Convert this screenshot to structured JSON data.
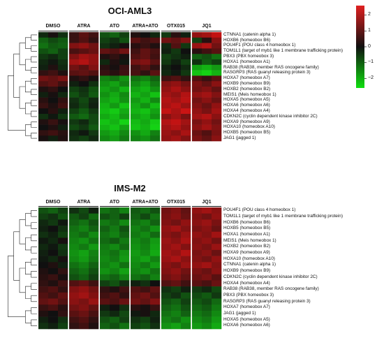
{
  "colorbar": {
    "ticks": [
      "2",
      "1",
      "0",
      "−1",
      "−2"
    ],
    "ticks_values": [
      2,
      1,
      0,
      -1,
      -2
    ],
    "range": [
      -2.6,
      2.6
    ],
    "colors": {
      "high": "#e02020",
      "mid": "#101010",
      "low": "#10e010"
    }
  },
  "chart_data": [
    {
      "type": "heatmap",
      "title": "OCI-AML3",
      "groups": [
        "DMSO",
        "ATRA",
        "ATO",
        "ATRA+ATO",
        "OTX015",
        "JQ1"
      ],
      "replicates_per_group": 3,
      "rows": [
        {
          "label": "CTNNA1 (catenin alpha 1)",
          "values": [
            -0.3,
            0.1,
            -0.4,
            0.5,
            0.9,
            0.6,
            -0.8,
            -1.0,
            -0.6,
            0.2,
            0.0,
            -0.3,
            -0.5,
            0.3,
            -0.2,
            1.6,
            1.8,
            2.2
          ]
        },
        {
          "label": "HOXB6 (homeobox B6)",
          "values": [
            -1.0,
            -0.7,
            -0.9,
            0.5,
            0.8,
            0.4,
            -0.6,
            -0.4,
            -0.8,
            0.9,
            0.6,
            0.8,
            1.2,
            1.0,
            1.4,
            -0.6,
            0.3,
            1.5
          ]
        },
        {
          "label": "POU4F1 (POU class 4 homeobox 1)",
          "values": [
            -1.2,
            -0.9,
            -1.0,
            1.4,
            1.6,
            1.2,
            -0.4,
            -0.2,
            0.1,
            0.3,
            0.5,
            0.2,
            -0.3,
            0.8,
            -0.5,
            1.7,
            2.0,
            1.2
          ]
        },
        {
          "label": "TOM1L1 (target of myb1 like 1 membrane trafficking protein)",
          "values": [
            -0.8,
            -1.0,
            -0.6,
            0.7,
            0.9,
            1.1,
            1.0,
            0.8,
            1.2,
            0.6,
            1.0,
            0.7,
            -0.2,
            -0.5,
            0.0,
            0.3,
            0.6,
            0.9
          ]
        },
        {
          "label": "PBX3 (PBX homeobox 3)",
          "values": [
            -0.5,
            -0.3,
            -0.6,
            1.4,
            1.8,
            1.6,
            0.2,
            0.4,
            0.1,
            0.8,
            1.0,
            0.6,
            -0.6,
            -0.4,
            -0.2,
            -1.0,
            -0.8,
            -1.2
          ]
        },
        {
          "label": "HOXA1 (homeobox A1)",
          "values": [
            -0.3,
            -0.1,
            -0.4,
            1.8,
            2.0,
            1.6,
            -0.3,
            0.2,
            -0.1,
            1.2,
            1.4,
            0.9,
            -0.5,
            -0.2,
            -0.6,
            -0.4,
            -0.9,
            -0.6
          ]
        },
        {
          "label": "RAB38 (RAB38, member RAS oncogene family)",
          "values": [
            -0.2,
            0.2,
            -0.3,
            1.2,
            0.9,
            1.4,
            0.3,
            0.1,
            0.5,
            0.6,
            0.9,
            0.4,
            -0.2,
            0.0,
            -0.3,
            -1.8,
            -2.0,
            -1.7
          ]
        },
        {
          "label": "RASGRP3 (RAS guanyl releasing protein 3)",
          "values": [
            0.4,
            0.6,
            0.2,
            0.9,
            1.0,
            0.8,
            0.5,
            0.3,
            0.6,
            0.7,
            0.4,
            0.9,
            -0.3,
            -0.1,
            -0.5,
            -2.2,
            -2.4,
            -2.0
          ]
        },
        {
          "label": "HOXA7 (homeobox A7)",
          "values": [
            1.2,
            1.0,
            1.3,
            0.2,
            0.4,
            0.1,
            -1.4,
            -1.2,
            -1.6,
            -1.2,
            -1.4,
            -1.0,
            0.6,
            0.8,
            0.4,
            0.8,
            0.5,
            0.9
          ]
        },
        {
          "label": "HOXB9 (homeobox B9)",
          "values": [
            0.8,
            1.0,
            0.6,
            -0.2,
            0.0,
            -0.4,
            -1.6,
            -1.8,
            -1.4,
            -1.5,
            -1.8,
            -1.3,
            1.4,
            1.6,
            1.2,
            1.3,
            1.0,
            1.5
          ]
        },
        {
          "label": "HOXB2 (homeobox B2)",
          "values": [
            0.2,
            0.4,
            0.0,
            -0.6,
            -0.4,
            -0.8,
            -1.8,
            -1.6,
            -2.0,
            -1.8,
            -2.0,
            -1.6,
            1.6,
            1.9,
            1.5,
            1.2,
            1.4,
            1.0
          ]
        },
        {
          "label": "MEIS1 (Meis homeobox 1)",
          "values": [
            -0.2,
            0.1,
            -0.3,
            -0.8,
            -0.5,
            -0.9,
            -1.6,
            -1.9,
            -1.5,
            -2.0,
            -1.8,
            -2.2,
            1.8,
            1.6,
            2.0,
            1.6,
            1.8,
            1.4
          ]
        },
        {
          "label": "HOXA5 (homeobox A5)",
          "values": [
            0.3,
            0.0,
            0.4,
            -0.4,
            -0.7,
            -0.3,
            -1.8,
            -2.0,
            -1.6,
            -1.7,
            -2.0,
            -1.5,
            2.0,
            1.8,
            2.1,
            1.2,
            1.5,
            1.1
          ]
        },
        {
          "label": "HOXA6 (homeobox A6)",
          "values": [
            0.5,
            0.2,
            0.6,
            -0.3,
            -0.6,
            -0.2,
            -2.0,
            -1.7,
            -2.2,
            -1.9,
            -1.6,
            -2.1,
            1.9,
            2.1,
            1.7,
            1.4,
            1.1,
            1.6
          ]
        },
        {
          "label": "HOXA4 (homeobox A4)",
          "values": [
            0.0,
            0.3,
            -0.2,
            -0.6,
            -0.9,
            -0.5,
            -2.1,
            -2.3,
            -1.9,
            -2.0,
            -2.2,
            -1.8,
            2.2,
            1.9,
            2.3,
            1.6,
            1.3,
            1.8
          ]
        },
        {
          "label": "CDKN2C (cyclin dependent kinase inhibitor 2C)",
          "values": [
            -0.4,
            -0.1,
            -0.5,
            -0.9,
            -1.1,
            -0.7,
            -1.9,
            -2.1,
            -1.7,
            -1.8,
            -2.0,
            -1.6,
            1.5,
            1.8,
            1.3,
            1.8,
            2.0,
            1.5
          ]
        },
        {
          "label": "HOXA9 (homeobox A9)",
          "values": [
            0.2,
            0.5,
            0.1,
            -0.5,
            -0.3,
            -0.7,
            -2.2,
            -2.0,
            -2.4,
            -2.1,
            -1.9,
            -2.3,
            2.0,
            2.2,
            1.8,
            1.3,
            1.6,
            1.2
          ]
        },
        {
          "label": "HOXA10 (homeobox A10)",
          "values": [
            0.0,
            0.2,
            -0.2,
            -0.7,
            -0.5,
            -0.9,
            -2.0,
            -2.2,
            -1.8,
            -2.2,
            -2.0,
            -2.4,
            1.8,
            2.0,
            1.6,
            1.5,
            1.8,
            1.4
          ]
        },
        {
          "label": "HOXB5 (homeobox B5)",
          "values": [
            0.4,
            0.6,
            0.3,
            -0.3,
            -0.1,
            -0.5,
            -1.7,
            -1.9,
            -1.5,
            -1.6,
            -1.9,
            -1.4,
            1.7,
            1.5,
            1.9,
            1.1,
            0.8,
            1.3
          ]
        },
        {
          "label": "JAG1 (jagged 1)",
          "values": [
            0.1,
            -0.2,
            0.2,
            -0.4,
            -0.6,
            -0.3,
            -1.5,
            -1.7,
            -1.3,
            -1.4,
            -1.6,
            -1.2,
            1.6,
            1.8,
            1.4,
            1.3,
            1.0,
            1.5
          ]
        }
      ]
    },
    {
      "type": "heatmap",
      "title": "IMS-M2",
      "groups": [
        "DMSO",
        "ATRA",
        "ATO",
        "ATRA+ATO",
        "OTX015",
        "JQ1"
      ],
      "replicates_per_group": 3,
      "rows": [
        {
          "label": "POU4F1 (POU class 4 homeobox 1)",
          "values": [
            -0.8,
            -1.0,
            -0.6,
            -0.4,
            -0.7,
            -0.2,
            -1.2,
            -1.0,
            -1.4,
            -0.9,
            -1.1,
            -0.8,
            1.2,
            1.4,
            1.0,
            1.6,
            1.8,
            1.5
          ]
        },
        {
          "label": "TOM1L1 (target of myb1 like 1 membrane trafficking protein)",
          "values": [
            -0.6,
            -0.4,
            -0.8,
            -0.9,
            -0.6,
            -1.1,
            -0.8,
            -1.0,
            -0.6,
            -1.0,
            -0.7,
            -1.2,
            1.3,
            1.5,
            1.1,
            1.4,
            1.2,
            1.6
          ]
        },
        {
          "label": "HOXB6 (homeobox B6)",
          "values": [
            -0.3,
            -0.5,
            -0.1,
            -1.0,
            -1.2,
            -0.8,
            -1.3,
            -1.1,
            -1.5,
            -1.2,
            -1.4,
            -1.0,
            1.4,
            1.2,
            1.6,
            1.5,
            1.7,
            1.3
          ]
        },
        {
          "label": "HOXB5 (homeobox B5)",
          "values": [
            -0.2,
            0.0,
            -0.4,
            -1.2,
            -1.4,
            -1.0,
            -1.0,
            -1.3,
            -0.8,
            -1.4,
            -1.2,
            -1.6,
            1.6,
            1.8,
            1.4,
            1.3,
            1.5,
            1.1
          ]
        },
        {
          "label": "HOXA1 (homeobox A1)",
          "values": [
            -0.4,
            -0.2,
            -0.6,
            -1.3,
            -1.1,
            -1.5,
            -1.2,
            -1.4,
            -1.0,
            -1.3,
            -1.5,
            -1.1,
            1.5,
            1.3,
            1.7,
            1.6,
            1.4,
            1.8
          ]
        },
        {
          "label": "MEIS1 (Meis homeobox 1)",
          "values": [
            -0.1,
            -0.3,
            0.1,
            -1.4,
            -1.6,
            -1.2,
            -1.1,
            -0.9,
            -1.3,
            -1.5,
            -1.3,
            -1.7,
            1.7,
            1.5,
            1.9,
            1.4,
            1.6,
            1.2
          ]
        },
        {
          "label": "HOXB2 (homeobox B2)",
          "values": [
            -0.3,
            -0.1,
            -0.5,
            -1.5,
            -1.3,
            -1.7,
            -1.3,
            -1.5,
            -1.1,
            -1.6,
            -1.4,
            -1.8,
            1.6,
            1.8,
            1.4,
            1.5,
            1.3,
            1.7
          ]
        },
        {
          "label": "HOXA9 (homeobox A9)",
          "values": [
            -0.2,
            0.0,
            -0.4,
            -1.6,
            -1.8,
            -1.4,
            -1.4,
            -1.2,
            -1.6,
            -1.7,
            -1.5,
            -1.9,
            1.8,
            1.6,
            2.0,
            1.3,
            1.5,
            1.1
          ]
        },
        {
          "label": "HOXA10 (homeobox A10)",
          "values": [
            -0.1,
            -0.3,
            0.1,
            -1.5,
            -1.7,
            -1.3,
            -1.5,
            -1.3,
            -1.7,
            -1.6,
            -1.8,
            -1.4,
            1.7,
            1.9,
            1.5,
            1.4,
            1.2,
            1.6
          ]
        },
        {
          "label": "CTNNA1 (catenin alpha 1)",
          "values": [
            0.0,
            0.2,
            -0.2,
            -1.2,
            -1.4,
            -1.0,
            -1.4,
            -1.6,
            -1.2,
            -1.5,
            -1.3,
            -1.7,
            1.5,
            1.3,
            1.7,
            1.6,
            1.8,
            1.4
          ]
        },
        {
          "label": "HOXB9 (homeobox B9)",
          "values": [
            0.2,
            0.0,
            0.4,
            -1.0,
            -1.2,
            -0.8,
            -1.6,
            -1.4,
            -1.8,
            -1.4,
            -1.6,
            -1.2,
            1.4,
            1.6,
            1.2,
            1.3,
            1.1,
            1.5
          ]
        },
        {
          "label": "CDKN2C (cyclin dependent kinase inhibitor 2C)",
          "values": [
            0.3,
            0.5,
            0.1,
            -0.8,
            -1.0,
            -0.6,
            -1.2,
            -1.0,
            -1.4,
            -1.2,
            -1.0,
            -1.4,
            1.2,
            1.4,
            1.0,
            1.1,
            1.3,
            0.9
          ]
        },
        {
          "label": "HOXA4 (homeobox A4)",
          "values": [
            0.4,
            0.2,
            0.6,
            0.8,
            1.0,
            0.6,
            -0.6,
            -0.8,
            -0.4,
            -0.2,
            -0.4,
            0.0,
            0.8,
            1.0,
            0.6,
            0.9,
            0.7,
            1.1
          ]
        },
        {
          "label": "RAB38 (RAB38, member RAS oncogene family)",
          "values": [
            0.6,
            0.8,
            0.4,
            1.4,
            1.6,
            1.2,
            0.4,
            0.2,
            0.6,
            0.8,
            0.6,
            1.0,
            -0.4,
            -0.6,
            -0.2,
            -0.5,
            -0.3,
            -0.7
          ]
        },
        {
          "label": "PBX3 (PBX homeobox 3)",
          "values": [
            0.8,
            0.6,
            1.0,
            1.6,
            1.8,
            1.4,
            0.6,
            0.8,
            0.4,
            1.0,
            1.2,
            0.8,
            -0.6,
            -0.4,
            -0.8,
            -0.7,
            -0.9,
            -0.5
          ]
        },
        {
          "label": "RASGRP3 (RAS guanyl releasing protein 3)",
          "values": [
            1.0,
            1.2,
            0.8,
            1.5,
            1.3,
            1.7,
            0.9,
            0.7,
            1.1,
            1.2,
            1.0,
            1.4,
            -0.8,
            -1.0,
            -0.6,
            -0.9,
            -0.7,
            -1.1
          ]
        },
        {
          "label": "HOXA7 (homeobox A7)",
          "values": [
            0.5,
            0.7,
            0.3,
            1.2,
            1.4,
            1.0,
            -0.2,
            0.0,
            -0.4,
            0.3,
            0.1,
            0.5,
            -1.0,
            -1.2,
            -0.8,
            -1.1,
            -0.9,
            -1.3
          ]
        },
        {
          "label": "JAG1 (jagged 1)",
          "values": [
            0.2,
            0.0,
            0.4,
            0.9,
            1.1,
            0.7,
            -0.5,
            -0.3,
            -0.7,
            -0.1,
            0.1,
            -0.3,
            -1.2,
            -1.4,
            -1.0,
            -1.3,
            -1.1,
            -1.5
          ]
        },
        {
          "label": "HOXA5 (homeobox A5)",
          "values": [
            -0.2,
            0.0,
            -0.4,
            0.6,
            0.8,
            0.4,
            -0.8,
            -1.0,
            -0.6,
            -0.4,
            -0.6,
            -0.2,
            -1.4,
            -1.2,
            -1.6,
            -1.5,
            -1.3,
            -1.7
          ]
        },
        {
          "label": "HOXA6 (homeobox A6)",
          "values": [
            -0.4,
            -0.2,
            -0.6,
            0.4,
            0.6,
            0.2,
            -1.0,
            -0.8,
            -1.2,
            -0.6,
            -0.8,
            -0.4,
            -1.6,
            -1.8,
            -1.4,
            -1.7,
            -1.5,
            -1.9
          ]
        }
      ]
    }
  ]
}
